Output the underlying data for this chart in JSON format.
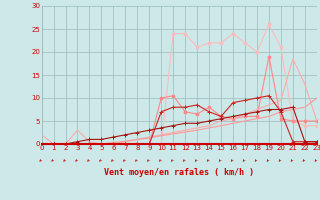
{
  "background_color": "#cce8e8",
  "grid_color": "#99bbbb",
  "xlabel": "Vent moyen/en rafales ( km/h )",
  "xlim": [
    0,
    23
  ],
  "ylim": [
    0,
    30
  ],
  "xticks": [
    0,
    1,
    2,
    3,
    4,
    5,
    6,
    7,
    8,
    9,
    10,
    11,
    12,
    13,
    14,
    15,
    16,
    17,
    18,
    19,
    20,
    21,
    22,
    23
  ],
  "yticks": [
    0,
    5,
    10,
    15,
    20,
    25,
    30
  ],
  "lines": [
    {
      "x": [
        0,
        1,
        2,
        3,
        4,
        5,
        6,
        7,
        8,
        9,
        10,
        11,
        12,
        13,
        14,
        15,
        16,
        17,
        18,
        19,
        20,
        21,
        22,
        23
      ],
      "y": [
        2,
        0,
        0,
        3,
        0.5,
        0,
        0,
        0,
        0,
        0,
        0,
        0,
        0,
        0,
        0,
        0,
        0,
        0,
        0,
        0,
        0,
        0,
        0,
        0
      ],
      "color": "#ffaaaa",
      "lw": 0.8,
      "marker": null
    },
    {
      "x": [
        0,
        1,
        2,
        3,
        4,
        5,
        6,
        7,
        8,
        9,
        10,
        11,
        12,
        13,
        14,
        15,
        16,
        17,
        18,
        19,
        20,
        21,
        22,
        23
      ],
      "y": [
        0,
        0,
        0,
        0,
        0,
        0,
        0,
        0,
        0,
        0,
        0,
        24,
        24,
        21,
        22,
        22,
        24,
        22,
        20,
        26,
        21,
        5,
        4,
        4
      ],
      "color": "#ffbbbb",
      "lw": 0.8,
      "marker": "o",
      "ms": 2.0
    },
    {
      "x": [
        0,
        1,
        2,
        3,
        4,
        5,
        6,
        7,
        8,
        9,
        10,
        11,
        12,
        13,
        14,
        15,
        16,
        17,
        18,
        19,
        20,
        21,
        22,
        23
      ],
      "y": [
        0,
        0,
        0,
        0,
        0,
        0,
        0,
        0,
        0,
        0,
        10,
        10.5,
        7,
        6.5,
        8,
        6,
        5.5,
        6,
        6,
        19,
        5.5,
        5,
        5,
        5
      ],
      "color": "#ff8888",
      "lw": 0.8,
      "marker": "o",
      "ms": 2.0
    },
    {
      "x": [
        0,
        1,
        2,
        3,
        4,
        5,
        6,
        7,
        8,
        9,
        10,
        11,
        12,
        13,
        14,
        15,
        16,
        17,
        18,
        19,
        20,
        21,
        22,
        23
      ],
      "y": [
        0,
        0,
        0,
        0,
        0,
        0,
        0,
        0.5,
        1,
        1.5,
        2,
        2.5,
        3,
        3.5,
        4,
        5,
        5.5,
        6.5,
        7.5,
        8.5,
        9.5,
        18.5,
        13,
        5
      ],
      "color": "#ffaaaa",
      "lw": 0.8,
      "marker": null
    },
    {
      "x": [
        0,
        1,
        2,
        3,
        4,
        5,
        6,
        7,
        8,
        9,
        10,
        11,
        12,
        13,
        14,
        15,
        16,
        17,
        18,
        19,
        20,
        21,
        22,
        23
      ],
      "y": [
        0,
        0,
        0,
        0,
        0,
        0,
        0.3,
        0.6,
        1,
        1.3,
        1.8,
        2.2,
        2.6,
        3,
        3.5,
        4,
        4.5,
        5,
        5.5,
        6,
        7,
        7.5,
        8,
        10
      ],
      "color": "#ff9999",
      "lw": 0.8,
      "marker": null
    },
    {
      "x": [
        0,
        1,
        2,
        3,
        4,
        5,
        6,
        7,
        8,
        9,
        10,
        11,
        12,
        13,
        14,
        15,
        16,
        17,
        18,
        19,
        20,
        21,
        22,
        23
      ],
      "y": [
        0,
        0,
        0,
        0,
        0,
        0,
        0,
        0,
        0,
        0,
        7,
        8,
        8,
        8.5,
        7,
        6,
        9,
        9.5,
        10,
        10.5,
        7,
        0.5,
        0.5,
        0.5
      ],
      "color": "#cc2222",
      "lw": 0.8,
      "marker": "+",
      "ms": 3
    },
    {
      "x": [
        0,
        1,
        2,
        3,
        4,
        5,
        6,
        7,
        8,
        9,
        10,
        11,
        12,
        13,
        14,
        15,
        16,
        17,
        18,
        19,
        20,
        21,
        22,
        23
      ],
      "y": [
        0,
        0,
        0,
        0.5,
        1,
        1,
        1.5,
        2,
        2.5,
        3,
        3.5,
        4,
        4.5,
        4.5,
        5,
        5.5,
        6,
        6.5,
        7,
        7.5,
        7.5,
        8,
        0.5,
        0.5
      ],
      "color": "#aa1111",
      "lw": 0.8,
      "marker": "+",
      "ms": 3
    }
  ],
  "tick_color": "#cc0000",
  "label_color": "#cc0000",
  "arrow_color": "#cc0000"
}
